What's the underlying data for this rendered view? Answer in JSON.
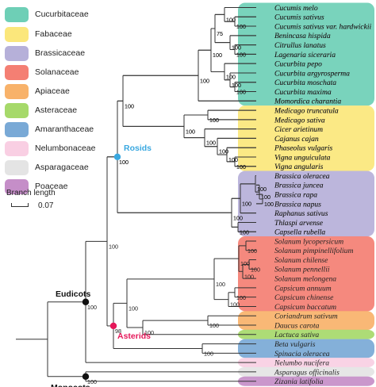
{
  "legend": {
    "families": [
      {
        "name": "Cucurbitaceae",
        "color": "#6ecfb6"
      },
      {
        "name": "Fabaceae",
        "color": "#fbe77b"
      },
      {
        "name": "Brassicaceae",
        "color": "#b6b0d9"
      },
      {
        "name": "Solanaceae",
        "color": "#f47f73"
      },
      {
        "name": "Apiaceae",
        "color": "#f8b26a"
      },
      {
        "name": "Asteraceae",
        "color": "#a6d96a"
      },
      {
        "name": "Amaranthaceae",
        "color": "#79a9d6"
      },
      {
        "name": "Nelumbonaceae",
        "color": "#f9cfe3"
      },
      {
        "name": "Asparagaceae",
        "color": "#e4e4e4"
      },
      {
        "name": "Poaceae",
        "color": "#c58ec8"
      }
    ],
    "branch_length_title": "Branch length",
    "scale_value": "0.07"
  },
  "taxa": [
    "Cucumis melo",
    "Cucumis sativus",
    "Cucumis sativus var. hardwickii",
    "Benincasa hispida",
    "Citrullus lanatus",
    "Lagenaria siceraria",
    "Cucurbita pepo",
    "Cucurbita argyrosperma",
    "Cucurbita moschata",
    "Cucurbita maxima",
    "Momordica charantia",
    "Medicago truncatula",
    "Medicago sativa",
    "Cicer arietinum",
    "Cajanus cajan",
    "Phaseolus vulgaris",
    "Vigna unguiculata",
    "Vigna angularis",
    "Brassica oleracea",
    "Brassica juncea",
    "Brassica rapa",
    "Brassica napus",
    "Raphanus sativus",
    "Thlaspi arvense",
    "Capsella rubella",
    "Solanum lycopersicum",
    "Solanum pimpinellifolium",
    "Solanum chilense",
    "Solanum pennellii",
    "Solanum melongena",
    "Capsicum annuum",
    "Capsicum chinense",
    "Capsicum baccatum",
    "Coriandrum sativum",
    "Daucus carota",
    "Lactuca sativa",
    "Beta vulgaris",
    "Spinacia oleracea",
    "Nelumbo nucifera",
    "Asparagus officinalis",
    "Zizania latifolia"
  ],
  "clades": {
    "rosids": "Rosids",
    "asterids": "Asterids",
    "eudicots": "Eudicots",
    "monocots": "Monocots"
  },
  "clade_colors": {
    "rosids": "#3aa8e0",
    "asterids": "#e5185a",
    "root_nodes": "#111111"
  },
  "bootstrap": {
    "full": "100",
    "asterids_node": "98",
    "cucumis_node": "75"
  }
}
